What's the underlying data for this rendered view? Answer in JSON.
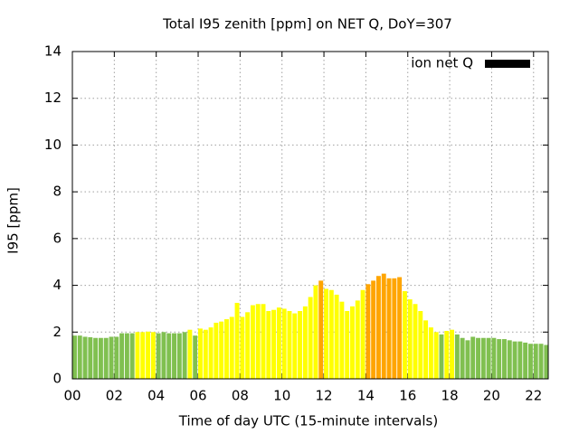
{
  "chart_data": {
    "type": "bar",
    "title": "Total I95 zenith [ppm] on NET Q, DoY=307",
    "x_label": "Time of day UTC (15-minute intervals)",
    "y_label": "I95 [ppm]",
    "x": [
      0,
      0.25,
      0.5,
      0.75,
      1,
      1.25,
      1.5,
      1.75,
      2,
      2.25,
      2.5,
      2.75,
      3,
      3.25,
      3.5,
      3.75,
      4,
      4.25,
      4.5,
      4.75,
      5,
      5.25,
      5.5,
      5.75,
      6,
      6.25,
      6.5,
      6.75,
      7,
      7.25,
      7.5,
      7.75,
      8,
      8.25,
      8.5,
      8.75,
      9,
      9.25,
      9.5,
      9.75,
      10,
      10.25,
      10.5,
      10.75,
      11,
      11.25,
      11.5,
      11.75,
      12,
      12.25,
      12.5,
      12.75,
      13,
      13.25,
      13.5,
      13.75,
      14,
      14.25,
      14.5,
      14.75,
      15,
      15.25,
      15.5,
      15.75,
      16,
      16.25,
      16.5,
      16.75,
      17,
      17.25,
      17.5,
      17.75,
      18,
      18.25,
      18.5,
      18.75,
      19,
      19.25,
      19.5,
      19.75,
      20,
      20.25,
      20.5,
      20.75,
      21,
      21.25,
      21.5,
      21.75,
      22,
      22.25,
      22.5
    ],
    "series": [
      {
        "name": "ion net Q",
        "color": "#000000",
        "values": [
          1.85,
          1.85,
          1.8,
          1.78,
          1.75,
          1.75,
          1.75,
          1.8,
          1.8,
          1.95,
          1.95,
          1.95,
          2.0,
          2.0,
          2.02,
          2.0,
          1.95,
          2.0,
          1.95,
          1.95,
          1.95,
          2.0,
          2.1,
          1.85,
          2.15,
          2.1,
          2.2,
          2.4,
          2.45,
          2.55,
          2.65,
          3.25,
          2.65,
          2.85,
          3.15,
          3.2,
          3.2,
          2.9,
          2.95,
          3.05,
          3.0,
          2.9,
          2.8,
          2.9,
          3.1,
          3.5,
          4.0,
          4.2,
          3.85,
          3.8,
          3.6,
          3.3,
          2.9,
          3.1,
          3.35,
          3.8,
          4.05,
          4.2,
          4.4,
          4.5,
          4.3,
          4.3,
          4.35,
          3.75,
          3.4,
          3.2,
          2.9,
          2.5,
          2.2,
          2.0,
          1.9,
          2.05,
          2.1,
          1.9,
          1.75,
          1.65,
          1.8,
          1.75,
          1.75,
          1.75,
          1.75,
          1.7,
          1.7,
          1.65,
          1.6,
          1.6,
          1.55,
          1.5,
          1.5,
          1.5,
          1.45
        ],
        "colors": [
          "#80c050",
          "#80c050",
          "#80c050",
          "#80c050",
          "#80c050",
          "#80c050",
          "#80c050",
          "#80c050",
          "#80c050",
          "#80c050",
          "#80c050",
          "#80c050",
          "#ffff00",
          "#ffff00",
          "#ffff00",
          "#ffff00",
          "#80c050",
          "#80c050",
          "#80c050",
          "#80c050",
          "#80c050",
          "#80c050",
          "#ffff00",
          "#80c050",
          "#ffff00",
          "#ffff00",
          "#ffff00",
          "#ffff00",
          "#ffff00",
          "#ffff00",
          "#ffff00",
          "#ffff00",
          "#ffff00",
          "#ffff00",
          "#ffff00",
          "#ffff00",
          "#ffff00",
          "#ffff00",
          "#ffff00",
          "#ffff00",
          "#ffff00",
          "#ffff00",
          "#ffff00",
          "#ffff00",
          "#ffff00",
          "#ffff00",
          "#ffff00",
          "#ffa500",
          "#ffff00",
          "#ffff00",
          "#ffff00",
          "#ffff00",
          "#ffff00",
          "#ffff00",
          "#ffff00",
          "#ffff00",
          "#ffa500",
          "#ffa500",
          "#ffa500",
          "#ffa500",
          "#ffa500",
          "#ffa500",
          "#ffa500",
          "#ffff00",
          "#ffff00",
          "#ffff00",
          "#ffff00",
          "#ffff00",
          "#ffff00",
          "#ffff00",
          "#80c050",
          "#ffff00",
          "#ffff00",
          "#80c050",
          "#80c050",
          "#80c050",
          "#80c050",
          "#80c050",
          "#80c050",
          "#80c050",
          "#80c050",
          "#80c050",
          "#80c050",
          "#80c050",
          "#80c050",
          "#80c050",
          "#80c050",
          "#80c050",
          "#80c050",
          "#80c050",
          "#80c050"
        ]
      }
    ],
    "xlim": [
      0,
      22.7
    ],
    "xticks": [
      {
        "value": 0,
        "label": "00"
      },
      {
        "value": 2,
        "label": "02"
      },
      {
        "value": 4,
        "label": "04"
      },
      {
        "value": 6,
        "label": "06"
      },
      {
        "value": 8,
        "label": "08"
      },
      {
        "value": 10,
        "label": "10"
      },
      {
        "value": 12,
        "label": "12"
      },
      {
        "value": 14,
        "label": "14"
      },
      {
        "value": 16,
        "label": "16"
      },
      {
        "value": 18,
        "label": "18"
      },
      {
        "value": 20,
        "label": "20"
      },
      {
        "value": 22,
        "label": "22"
      }
    ],
    "ylim": [
      0,
      14
    ],
    "yticks": [
      0,
      2,
      4,
      6,
      8,
      10,
      12,
      14
    ],
    "grid": true,
    "legend": "top-right"
  }
}
